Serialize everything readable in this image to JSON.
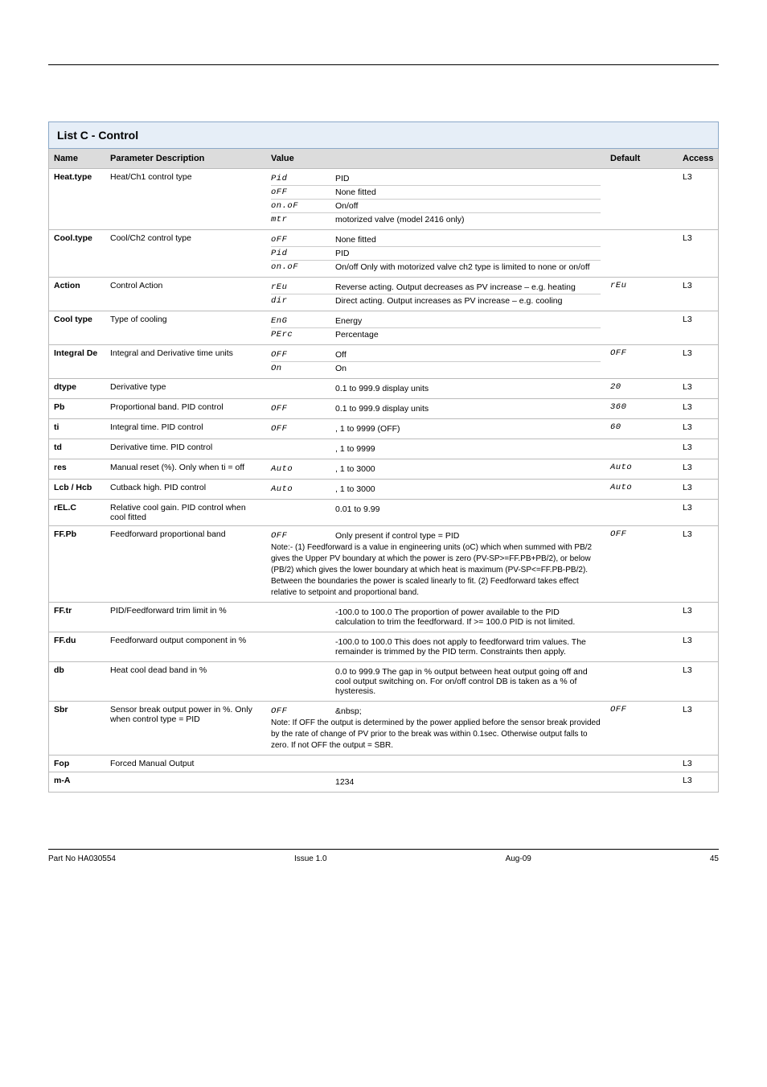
{
  "banner": {
    "title": "List C - Control"
  },
  "columns": {
    "c1": "Name",
    "c2": "Parameter Description",
    "c3": "Value",
    "c4": "Default",
    "c5": "Access"
  },
  "rows": [
    {
      "name": "Heat.type",
      "desc": "Heat/Ch1 control type",
      "default": "",
      "access": "L3",
      "sub": [
        {
          "k": "Pid",
          "v": "PID"
        },
        {
          "k": "oFF",
          "v": "None fitted"
        },
        {
          "k": "on.oF",
          "v": "On/off"
        },
        {
          "k": "mtr",
          "v": "motorized valve (model 2416 only)"
        }
      ]
    },
    {
      "name": "Cool.type",
      "desc": "Cool/Ch2 control type",
      "default": "",
      "access": "L3",
      "sub": [
        {
          "k": "oFF",
          "v": "None fitted"
        },
        {
          "k": "Pid",
          "v": "PID"
        },
        {
          "k": "on.oF",
          "v": "On/off\nOnly with motorized valve ch2 type is limited to none or on/off"
        }
      ]
    },
    {
      "name": "Action",
      "desc": "Control Action",
      "default": "rEu",
      "access": "L3",
      "sub": [
        {
          "k": "rEu",
          "v": "Reverse acting. Output decreases as PV increase – e.g. heating"
        },
        {
          "k": "dir",
          "v": "Direct acting. Output increases as PV increase – e.g. cooling"
        }
      ]
    },
    {
      "name": "Cool type",
      "desc": "Type of cooling",
      "default": "",
      "access": "L3",
      "sub": [
        {
          "k": "EnG",
          "v": "Energy"
        },
        {
          "k": "PErc",
          "v": "Percentage"
        }
      ]
    },
    {
      "name": "Integral De",
      "desc": "Integral and Derivative time units",
      "default": "OFF",
      "access": "L3",
      "sub": [
        {
          "k": "OFF",
          "v": "Off"
        },
        {
          "k": "On",
          "v": "On"
        }
      ]
    },
    {
      "name": "dtype",
      "desc": "Derivative type",
      "default": "20",
      "access": "L3",
      "sub": [
        {
          "k": "",
          "v": "0.1 to 999.9 display units"
        }
      ]
    },
    {
      "name": "Pb",
      "desc": "Proportional band. PID control",
      "default": "360",
      "access": "L3",
      "sub": [
        {
          "k": "OFF",
          "v": "0.1 to 999.9 display units"
        }
      ]
    },
    {
      "name": "ti",
      "desc": "Integral time. PID control",
      "default": "60",
      "access": "L3",
      "sub": [
        {
          "k": "OFF",
          "v": ", 1 to 9999 (OFF)"
        }
      ]
    },
    {
      "name": "td",
      "desc": "Derivative time. PID control",
      "default": "",
      "access": "L3",
      "sub": [
        {
          "k": "",
          "v": ", 1 to 9999"
        }
      ]
    },
    {
      "name": "res",
      "desc": "Manual reset (%). Only when ti = off",
      "default": "Auto",
      "access": "L3",
      "sub": [
        {
          "k": "Auto",
          "v": ", 1 to 3000"
        }
      ]
    },
    {
      "name": "Lcb / Hcb",
      "desc": "Cutback high. PID control",
      "default": "Auto",
      "access": "L3",
      "sub": [
        {
          "k": "Auto",
          "v": ", 1 to 3000"
        }
      ]
    },
    {
      "name": "rEL.C",
      "desc": "Relative cool gain. PID control when cool fitted",
      "default": "",
      "access": "L3",
      "sub": [
        {
          "k": "",
          "v": "0.01 to 9.99"
        }
      ]
    },
    {
      "name": "FF.Pb",
      "desc": "Feedforward proportional band",
      "default": "OFF",
      "access": "L3",
      "sub": [
        {
          "k": "OFF",
          "v": "Only present if control type = PID"
        }
      ],
      "note": "Note:-\n(1) Feedforward is a value in engineering units (oC) which when summed with PB/2 gives the Upper PV boundary at which the power is zero (PV-SP>=FF.PB+PB/2), or below (PB/2) which gives the lower boundary at which heat is maximum (PV-SP<=FF.PB-PB/2). Between the boundaries the power is scaled linearly to fit.\n(2) Feedforward takes effect relative to setpoint and proportional band."
    },
    {
      "name": "FF.tr",
      "desc": "PID/Feedforward trim limit in %",
      "default": "",
      "access": "L3",
      "sub": [
        {
          "k": "",
          "v": "-100.0 to 100.0\nThe proportion of power available to the PID calculation to trim the feedforward. If >= 100.0 PID is not limited."
        }
      ]
    },
    {
      "name": "FF.du",
      "desc": "Feedforward output component in %",
      "default": "",
      "access": "L3",
      "sub": [
        {
          "k": "",
          "v": "-100.0 to 100.0\nThis does not apply to feedforward trim values. The remainder is trimmed by the PID term. Constraints then apply."
        }
      ]
    },
    {
      "name": "db",
      "desc": "Heat cool dead band in %",
      "default": "",
      "access": "L3",
      "sub": [
        {
          "k": "",
          "v": "0.0 to 999.9\nThe gap in % output between heat output going off and cool output switching on. For on/off control DB is taken as a % of hysteresis."
        }
      ]
    },
    {
      "name": "Sbr",
      "desc": "Sensor break output power in %. Only when control type = PID",
      "default": "OFF",
      "access": "L3",
      "sub": [
        {
          "k": "OFF",
          "v": "&nbsp;"
        }
      ],
      "note": "Note: If OFF the output is determined by the power applied before the sensor break provided by the rate of change of PV prior to the break was within 0.1sec. Otherwise output falls to zero.\nIf not OFF the output = SBR."
    },
    {
      "name": "Fop",
      "desc": "Forced Manual Output",
      "default": "",
      "access": "L3",
      "sub": [
        {
          "k": "",
          "v": ""
        }
      ]
    },
    {
      "name": "m-A",
      "desc": "",
      "default": "",
      "access": "L3",
      "sub": [
        {
          "k": "",
          "v": "1234"
        }
      ]
    }
  ],
  "footer": {
    "left": "Part No HA030554",
    "center": "Issue 1.0",
    "right": "Aug-09",
    "page": "45"
  }
}
